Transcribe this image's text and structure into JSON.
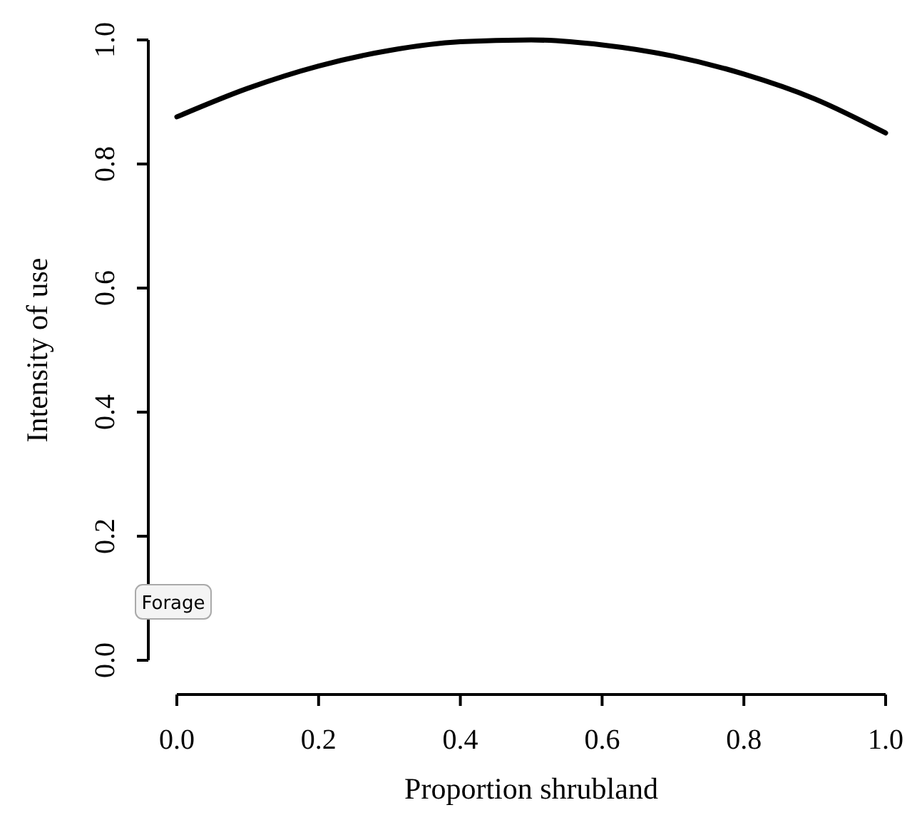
{
  "chart_data": {
    "type": "line",
    "xlabel": "Proportion shrubland",
    "ylabel": "Intensity of use",
    "x": [
      0,
      0.1,
      0.2,
      0.3,
      0.4,
      0.5,
      0.6,
      0.7,
      0.8,
      0.9,
      1.0
    ],
    "series": [
      {
        "color": "#000000",
        "values": [
          0.876,
          0.922,
          0.958,
          0.983,
          0.997,
          1.0,
          0.992,
          0.974,
          0.945,
          0.905,
          0.85
        ]
      }
    ],
    "xlim": [
      0,
      1
    ],
    "ylim": [
      0,
      1
    ],
    "xticks": [
      {
        "value": 0,
        "label": "0.0"
      },
      {
        "value": 0.2,
        "label": "0.2"
      },
      {
        "value": 0.4,
        "label": "0.4"
      },
      {
        "value": 0.6,
        "label": "0.6"
      },
      {
        "value": 0.8,
        "label": "0.8"
      },
      {
        "value": 1,
        "label": "1.0"
      }
    ],
    "yticks": [
      {
        "value": 0,
        "label": "0.0"
      },
      {
        "value": 0.2,
        "label": "0.2"
      },
      {
        "value": 0.4,
        "label": "0.4"
      },
      {
        "value": 0.6,
        "label": "0.6"
      },
      {
        "value": 0.8,
        "label": "0.8"
      },
      {
        "value": 1,
        "label": "1.0"
      }
    ],
    "grid": false,
    "marker": "none",
    "line_style": "solid",
    "annotations": [
      "Forage"
    ]
  }
}
